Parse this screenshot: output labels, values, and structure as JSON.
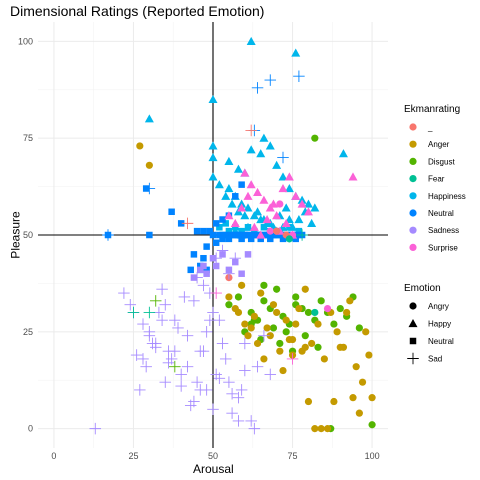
{
  "chart_data": {
    "type": "scatter",
    "title": "Dimensional Ratings (Reported Emotion)",
    "xlabel": "Arousal",
    "ylabel": "Pleasure",
    "xlim": [
      -5,
      105
    ],
    "ylim": [
      -5,
      105
    ],
    "x_ticks": [
      0,
      25,
      50,
      75,
      100
    ],
    "y_ticks": [
      0,
      25,
      50,
      75,
      100
    ],
    "reference_lines": {
      "x": 50,
      "y": 50
    },
    "grid": true,
    "legend_position": "right",
    "color_legend": {
      "title": "Ekmanrating",
      "entries": [
        {
          "label": "_",
          "color": "#F8766D"
        },
        {
          "label": "Anger",
          "color": "#C49A00"
        },
        {
          "label": "Disgust",
          "color": "#53B400"
        },
        {
          "label": "Fear",
          "color": "#00C094"
        },
        {
          "label": "Happiness",
          "color": "#00B6EB"
        },
        {
          "label": "Neutral",
          "color": "#0083FF"
        },
        {
          "label": "Sadness",
          "color": "#A58AFF"
        },
        {
          "label": "Surprise",
          "color": "#FB61D7"
        }
      ]
    },
    "shape_legend": {
      "title": "Emotion",
      "entries": [
        {
          "label": "Angry",
          "shape": "circle"
        },
        {
          "label": "Happy",
          "shape": "triangle"
        },
        {
          "label": "Neutral",
          "shape": "square"
        },
        {
          "label": "Sad",
          "shape": "cross"
        }
      ]
    },
    "series": [
      {
        "name": "Happiness",
        "color": "#00B6EB",
        "shape": "triangle",
        "x": [
          62,
          76,
          30,
          50,
          50,
          50,
          55,
          58,
          60,
          62,
          65,
          66,
          68,
          70,
          72,
          74,
          76,
          78,
          80,
          82,
          55,
          57,
          59,
          61,
          63,
          65,
          67,
          69,
          71,
          73,
          75,
          77,
          79,
          81,
          50,
          52,
          54,
          56,
          58,
          60,
          64,
          66,
          68,
          70,
          72,
          74,
          91,
          57,
          59,
          61
        ],
        "y": [
          100,
          97,
          80,
          85,
          73,
          70,
          69,
          67,
          66,
          72,
          71,
          75,
          73,
          68,
          65,
          62,
          60,
          59,
          58,
          57,
          62,
          60,
          58,
          57,
          55,
          54,
          53,
          52,
          55,
          57,
          52,
          54,
          56,
          53,
          65,
          63,
          60,
          58,
          56,
          55,
          56,
          54,
          53,
          51,
          52,
          54,
          71,
          51,
          50,
          52
        ]
      },
      {
        "name": "Happiness",
        "color": "#00B6EB",
        "shape": "square",
        "x": [
          52,
          53,
          54,
          55,
          56,
          57,
          58,
          59,
          60,
          61,
          62,
          63,
          64,
          65,
          66,
          67,
          68,
          69,
          70,
          71,
          72,
          73,
          74,
          75,
          76,
          77
        ],
        "y": [
          52,
          50,
          53,
          51,
          50,
          52,
          50,
          51,
          50,
          52,
          50,
          51,
          50,
          50,
          52,
          50,
          51,
          50,
          50,
          51,
          50,
          50,
          52,
          50,
          50,
          51
        ]
      },
      {
        "name": "Neutral",
        "color": "#0083FF",
        "shape": "square",
        "x": [
          17,
          30,
          29,
          37,
          40,
          44,
          46,
          47,
          48,
          50,
          51,
          52,
          53,
          54,
          55,
          56,
          57,
          58,
          59,
          60,
          61,
          62,
          63,
          64,
          65,
          66,
          67,
          68,
          69,
          70,
          71,
          72,
          73,
          74,
          75,
          76,
          77,
          78,
          45,
          47,
          49,
          43,
          46,
          48,
          51,
          53,
          55,
          57,
          59,
          58
        ],
        "y": [
          50,
          50,
          62,
          56,
          53,
          45,
          42,
          44,
          47,
          50,
          48,
          50,
          49,
          50,
          49,
          50,
          50,
          50,
          49,
          50,
          50,
          49,
          50,
          50,
          49,
          50,
          50,
          49,
          50,
          50,
          50,
          49,
          50,
          50,
          50,
          49,
          50,
          50,
          51,
          51,
          51,
          41,
          41,
          41,
          53,
          54,
          55,
          60,
          63,
          50
        ]
      },
      {
        "name": "Disgust",
        "color": "#53B400",
        "shape": "circle",
        "x": [
          55,
          58,
          62,
          64,
          66,
          68,
          70,
          72,
          74,
          76,
          78,
          80,
          82,
          84,
          86,
          88,
          90,
          92,
          94,
          96,
          60,
          63,
          65,
          69,
          71,
          75,
          79,
          83,
          87,
          100,
          82,
          62,
          66,
          76,
          73
        ],
        "y": [
          32,
          34,
          30,
          28,
          33,
          31,
          36,
          29,
          27,
          34,
          31,
          30,
          28,
          33,
          30,
          27,
          31,
          29,
          34,
          26,
          25,
          28,
          23,
          26,
          22,
          20,
          24,
          21,
          0,
          1,
          75,
          27,
          37,
          32,
          25
        ]
      },
      {
        "name": "Anger",
        "color": "#C49A00",
        "shape": "circle",
        "x": [
          30,
          27,
          55,
          57,
          59,
          61,
          63,
          65,
          67,
          69,
          71,
          73,
          75,
          77,
          79,
          81,
          83,
          85,
          87,
          89,
          91,
          93,
          95,
          97,
          99,
          60,
          62,
          64,
          66,
          68,
          70,
          72,
          74,
          76,
          78,
          80,
          82,
          84,
          86,
          88,
          90,
          92,
          94,
          96,
          98,
          100,
          58,
          75,
          79
        ],
        "y": [
          68,
          73,
          34,
          31,
          37,
          24,
          29,
          35,
          26,
          32,
          20,
          28,
          23,
          31,
          36,
          22,
          27,
          18,
          30,
          25,
          21,
          33,
          16,
          12,
          19,
          27,
          26,
          22,
          18,
          24,
          30,
          15,
          23,
          27,
          20,
          7,
          0,
          0,
          0,
          7,
          21,
          30,
          8,
          4,
          25,
          8,
          30,
          19,
          21
        ]
      },
      {
        "name": "Surprise",
        "color": "#FB61D7",
        "shape": "triangle",
        "x": [
          60,
          62,
          64,
          66,
          68,
          70,
          72,
          74,
          76,
          78,
          80,
          94,
          55,
          57,
          59,
          61,
          63,
          65,
          67,
          69,
          71,
          73,
          75
        ],
        "y": [
          66,
          63,
          61,
          59,
          57,
          55,
          62,
          65,
          60,
          58,
          56,
          65,
          55,
          53,
          57,
          60,
          52,
          50,
          54,
          58,
          51,
          53,
          50
        ]
      },
      {
        "name": "Surprise",
        "color": "#FB61D7",
        "shape": "circle",
        "x": [
          68,
          71,
          75,
          86
        ],
        "y": [
          51,
          58,
          50,
          31
        ]
      },
      {
        "name": "_",
        "color": "#F8766D",
        "shape": "circle",
        "x": [
          55,
          70,
          73
        ],
        "y": [
          39,
          51,
          50
        ]
      },
      {
        "name": "Fear",
        "color": "#00C094",
        "shape": "circle",
        "x": [
          82,
          74
        ],
        "y": [
          30,
          49
        ]
      },
      {
        "name": "Sadness",
        "color": "#A58AFF",
        "shape": "cross",
        "x": [
          13,
          22,
          25,
          28,
          30,
          32,
          34,
          35,
          36,
          38,
          40,
          42,
          44,
          46,
          48,
          50,
          52,
          55,
          58,
          60,
          62,
          64,
          66,
          68,
          27,
          29,
          31,
          33,
          35,
          37,
          39,
          41,
          43,
          45,
          47,
          49,
          51,
          53,
          56,
          59,
          26,
          30,
          34,
          38,
          42,
          46,
          50,
          54,
          58,
          63,
          24,
          28,
          32,
          36,
          40,
          44,
          48,
          52,
          56,
          60,
          45,
          47,
          49,
          51,
          53,
          55,
          57
        ],
        "y": [
          0,
          35,
          30,
          18,
          25,
          22,
          36,
          32,
          20,
          28,
          14,
          24,
          33,
          20,
          10,
          30,
          28,
          12,
          8,
          22,
          2,
          16,
          24,
          14,
          10,
          16,
          22,
          30,
          12,
          18,
          26,
          34,
          6,
          12,
          20,
          28,
          14,
          22,
          4,
          10,
          19,
          24,
          28,
          20,
          16,
          10,
          5,
          18,
          2,
          0,
          32,
          27,
          21,
          17,
          11,
          7,
          25,
          13,
          9,
          15,
          39,
          37,
          35,
          44,
          46,
          40,
          44
        ]
      },
      {
        "name": "Sadness",
        "color": "#A58AFF",
        "shape": "square",
        "x": [
          44,
          46,
          47,
          48,
          50,
          51,
          53,
          55,
          57,
          59,
          61
        ],
        "y": [
          39,
          41,
          42,
          40,
          44,
          42,
          45,
          41,
          43,
          40,
          45
        ]
      },
      {
        "name": "Neutral",
        "color": "#0083FF",
        "shape": "cross",
        "x": [
          17,
          30,
          64,
          68,
          77,
          63,
          72
        ],
        "y": [
          50,
          62,
          88,
          90,
          91,
          77,
          70
        ]
      },
      {
        "name": "Fear",
        "color": "#00C094",
        "shape": "cross",
        "x": [
          25,
          30,
          78
        ],
        "y": [
          30,
          30,
          50
        ]
      },
      {
        "name": "Disgust",
        "color": "#53B400",
        "shape": "cross",
        "x": [
          38,
          32
        ],
        "y": [
          16,
          33
        ]
      },
      {
        "name": "_",
        "color": "#F8766D",
        "shape": "cross",
        "x": [
          42,
          62
        ],
        "y": [
          53,
          77
        ]
      },
      {
        "name": "Surprise",
        "color": "#FB61D7",
        "shape": "cross",
        "x": [
          51,
          75
        ],
        "y": [
          35,
          18
        ]
      }
    ]
  }
}
